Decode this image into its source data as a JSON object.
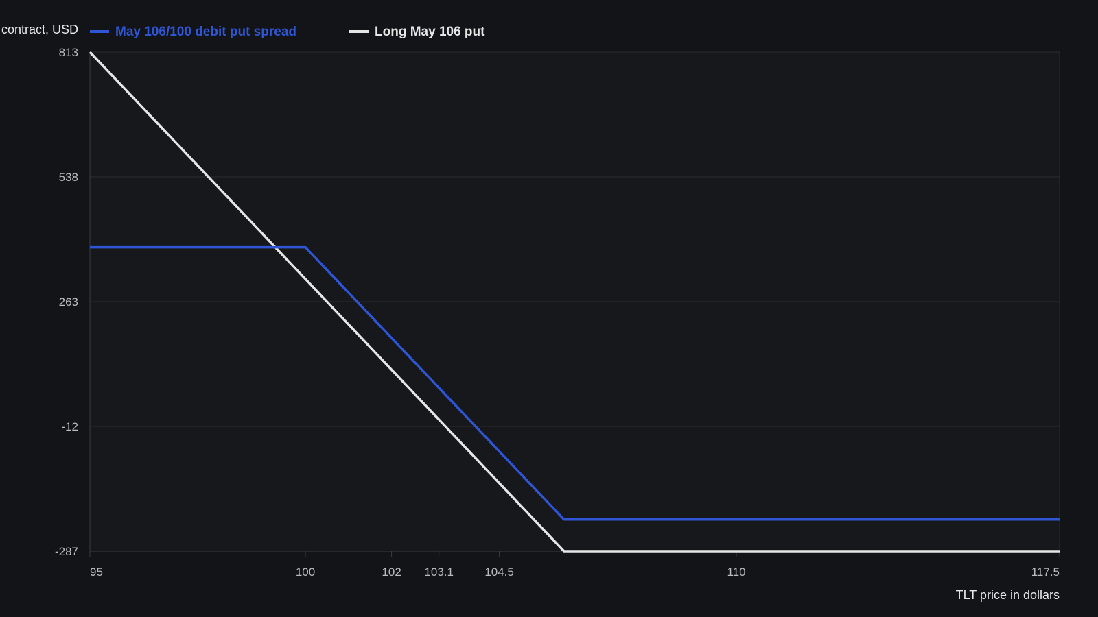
{
  "chart_data": {
    "type": "line",
    "ylabel": "contract, USD",
    "xlabel": "TLT price in dollars",
    "x_ticks": [
      95,
      100,
      102,
      103.1,
      104.5,
      110,
      117.5
    ],
    "y_ticks": [
      813,
      538,
      263,
      -12,
      -287
    ],
    "xlim": [
      95,
      117.5
    ],
    "ylim": [
      -287,
      813
    ],
    "grid": true,
    "legend_position": "top",
    "series": [
      {
        "name": "May 106/100 debit put spread",
        "color": "#2f55d4",
        "x": [
          95,
          100,
          106,
          117.5
        ],
        "y": [
          383,
          383,
          -217,
          -217
        ]
      },
      {
        "name": "Long May 106 put",
        "color": "#e6e6e6",
        "x": [
          95,
          106,
          117.5
        ],
        "y": [
          813,
          -287,
          -287
        ]
      }
    ]
  }
}
